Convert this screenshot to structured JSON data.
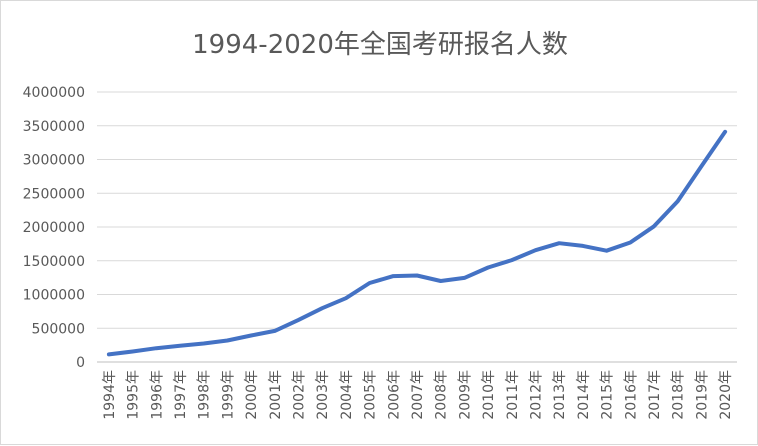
{
  "chart_data": {
    "type": "line",
    "title": "1994-2020年全国考研报名人数",
    "xlabel": "",
    "ylabel": "",
    "categories": [
      "1994年",
      "1995年",
      "1996年",
      "1997年",
      "1998年",
      "1999年",
      "2000年",
      "2001年",
      "2002年",
      "2003年",
      "2004年",
      "2005年",
      "2006年",
      "2007年",
      "2008年",
      "2009年",
      "2010年",
      "2011年",
      "2012年",
      "2013年",
      "2014年",
      "2015年",
      "2016年",
      "2017年",
      "2018年",
      "2019年",
      "2020年"
    ],
    "series": [
      {
        "color": "#4472c4",
        "values": [
          113000,
          155000,
          204000,
          242000,
          274000,
          319000,
          392000,
          460000,
          624000,
          797000,
          945000,
          1170000,
          1272000,
          1282000,
          1200000,
          1246000,
          1400000,
          1510000,
          1656000,
          1760000,
          1720000,
          1649000,
          1770000,
          2010000,
          2380000,
          2900000,
          3410000
        ]
      }
    ],
    "ylim": [
      0,
      4000000
    ],
    "yticks": [
      0,
      500000,
      1000000,
      1500000,
      2000000,
      2500000,
      3000000,
      3500000,
      4000000
    ],
    "ytick_labels": [
      "0",
      "500000",
      "1000000",
      "1500000",
      "2000000",
      "2500000",
      "3000000",
      "3500000",
      "4000000"
    ],
    "grid": true,
    "legend": "none"
  }
}
